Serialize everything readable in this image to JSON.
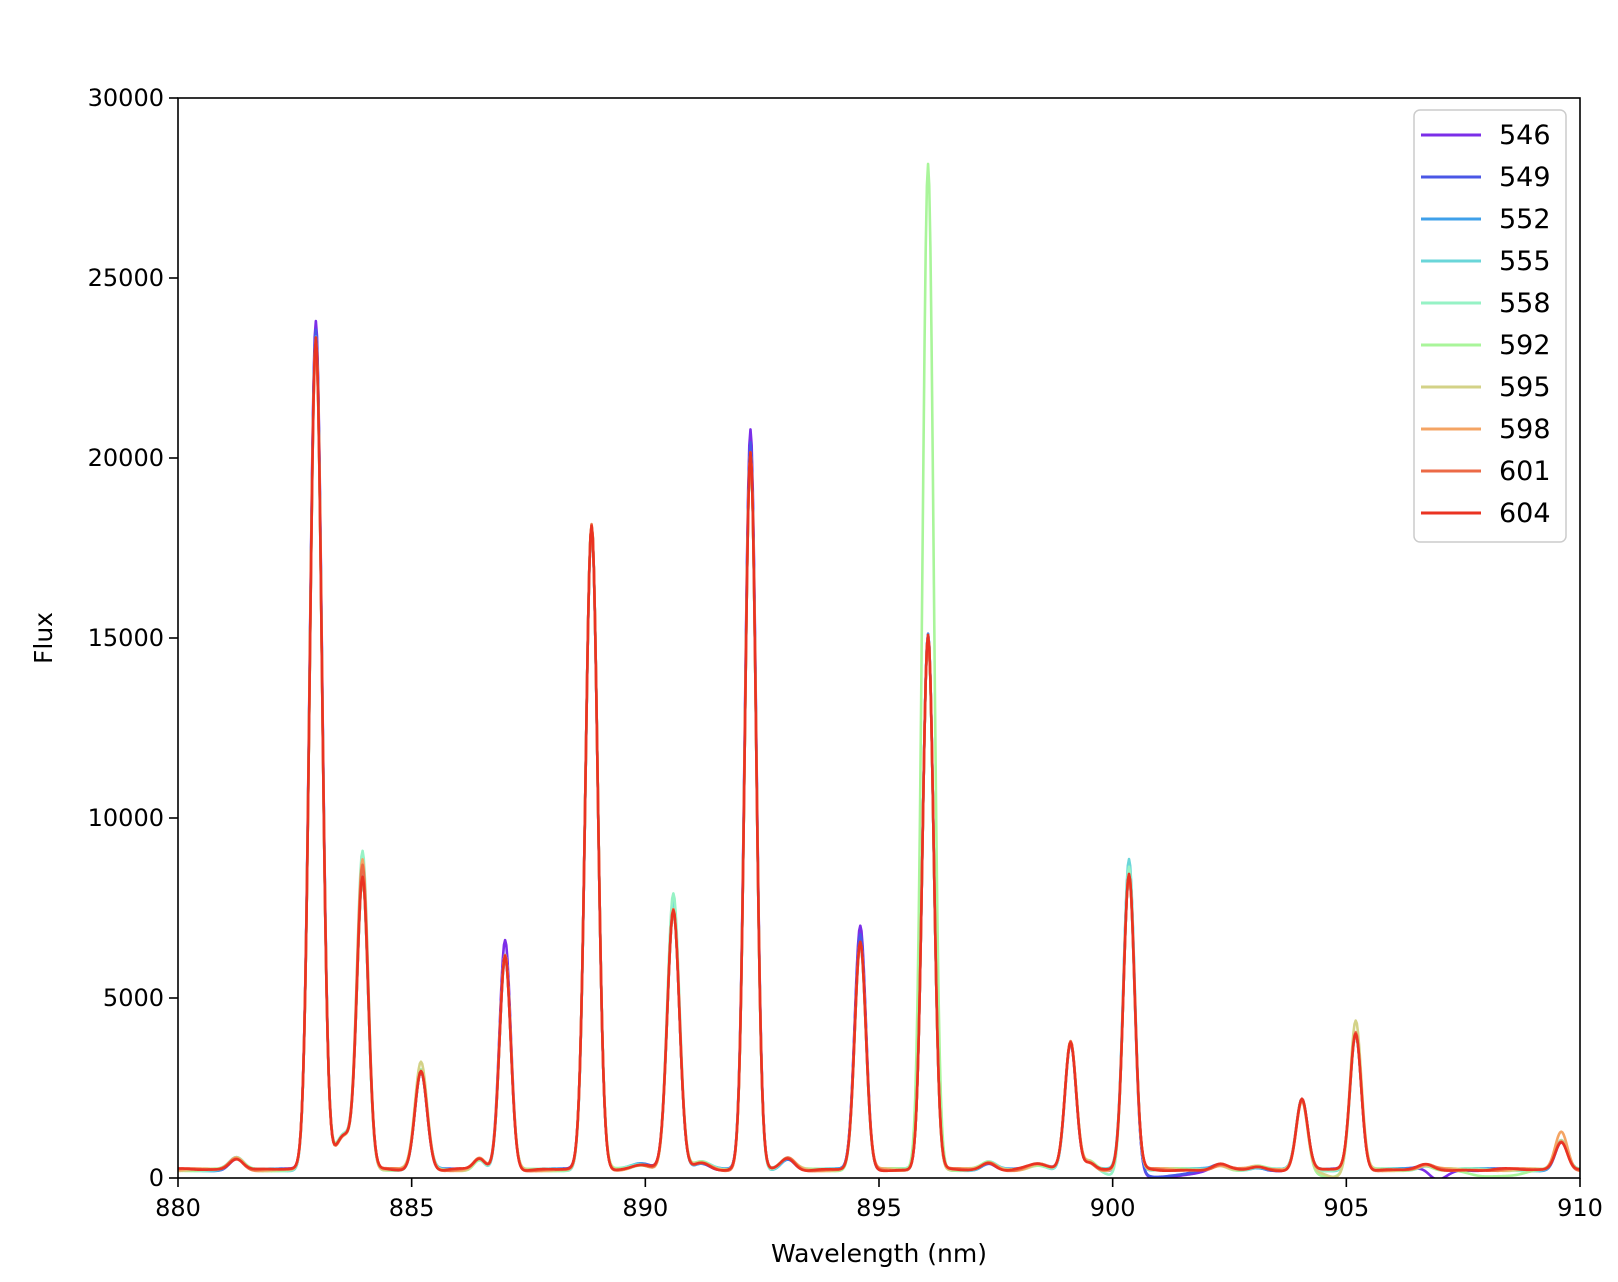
{
  "chart_data": {
    "type": "line",
    "title": "",
    "xlabel": "Wavelength (nm)",
    "ylabel": "Flux",
    "xlim": [
      880,
      910
    ],
    "ylim": [
      0,
      30000
    ],
    "xticks": [
      880,
      885,
      890,
      895,
      900,
      905,
      910
    ],
    "yticks": [
      0,
      5000,
      10000,
      15000,
      20000,
      25000,
      30000
    ],
    "grid": false,
    "legend_position": "top-right",
    "baseline_flux": 230,
    "line_width_nm": 0.14,
    "peaks": [
      [
        881.25,
        330,
        0.15
      ],
      [
        882.95,
        22950,
        0.13
      ],
      [
        883.55,
        950,
        0.18
      ],
      [
        883.95,
        8050,
        0.12
      ],
      [
        885.2,
        2750,
        0.13
      ],
      [
        886.45,
        300,
        0.12
      ],
      [
        887.0,
        5950,
        0.12
      ],
      [
        888.85,
        17900,
        0.13
      ],
      [
        889.9,
        140,
        0.2
      ],
      [
        890.6,
        7200,
        0.13
      ],
      [
        891.2,
        200,
        0.18
      ],
      [
        892.25,
        19900,
        0.12
      ],
      [
        893.05,
        320,
        0.15
      ],
      [
        894.6,
        6300,
        0.12
      ],
      [
        896.05,
        14850,
        0.12
      ],
      [
        897.35,
        200,
        0.15
      ],
      [
        898.4,
        150,
        0.2
      ],
      [
        899.1,
        3550,
        0.12
      ],
      [
        899.5,
        220,
        0.12
      ],
      [
        900.35,
        8200,
        0.12
      ],
      [
        902.3,
        130,
        0.15
      ],
      [
        903.1,
        80,
        0.15
      ],
      [
        904.05,
        1950,
        0.12
      ],
      [
        905.2,
        3800,
        0.12
      ],
      [
        906.7,
        120,
        0.15
      ],
      [
        909.6,
        800,
        0.13
      ]
    ],
    "series": [
      {
        "name": "546",
        "color": "#7b2ee8",
        "mods": [
          [
            882.95,
            650
          ],
          [
            892.25,
            650
          ],
          [
            894.6,
            450
          ],
          [
            900.4,
            400
          ],
          [
            886.95,
            450
          ]
        ],
        "dips": [
          [
            900.95,
            0.3,
            230
          ],
          [
            906.9,
            0.12,
            300
          ]
        ]
      },
      {
        "name": "549",
        "color": "#4a57e6",
        "mods": [
          [
            882.95,
            400
          ],
          [
            892.25,
            300
          ],
          [
            894.6,
            250
          ]
        ],
        "dips": [
          [
            901.0,
            0.25,
            180
          ]
        ]
      },
      {
        "name": "552",
        "color": "#3fa0ea",
        "mods": [
          [
            882.95,
            200
          ],
          [
            900.3,
            200
          ]
        ],
        "dips": []
      },
      {
        "name": "555",
        "color": "#6ad6d9",
        "mods": [
          [
            882.95,
            150
          ],
          [
            890.6,
            300
          ],
          [
            900.3,
            450
          ]
        ],
        "dips": []
      },
      {
        "name": "558",
        "color": "#96f2c5",
        "mods": [
          [
            883.95,
            750
          ],
          [
            890.6,
            500
          ],
          [
            900.25,
            300
          ]
        ],
        "dips": [
          [
            900.0,
            0.12,
            180
          ]
        ]
      },
      {
        "name": "592",
        "color": "#a9f59a",
        "mods": [
          [
            896.05,
            13100
          ]
        ],
        "dips": [
          [
            904.7,
            0.15,
            200
          ],
          [
            908.1,
            0.3,
            180
          ]
        ]
      },
      {
        "name": "595",
        "color": "#d3d287",
        "mods": [
          [
            885.2,
            250
          ],
          [
            905.2,
            350
          ]
        ],
        "dips": [
          [
            904.75,
            0.12,
            220
          ]
        ]
      },
      {
        "name": "598",
        "color": "#f4a464",
        "mods": [
          [
            883.95,
            500
          ],
          [
            909.6,
            250
          ]
        ],
        "dips": []
      },
      {
        "name": "601",
        "color": "#ec6a46",
        "mods": [
          [
            883.95,
            350
          ]
        ],
        "dips": []
      },
      {
        "name": "604",
        "color": "#ea3322",
        "mods": [
          [
            882.95,
            200
          ]
        ],
        "dips": []
      }
    ]
  }
}
